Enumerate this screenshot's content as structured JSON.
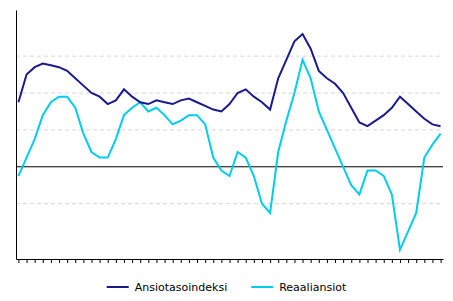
{
  "chart_data": {
    "type": "line",
    "categories": [
      null,
      null,
      null,
      null,
      null,
      null,
      null,
      null,
      null,
      null,
      null,
      null,
      null,
      null,
      null,
      null,
      null,
      null,
      null,
      null,
      null,
      null,
      null,
      null,
      null,
      null,
      null,
      null,
      null,
      null,
      null,
      null,
      null,
      null,
      null,
      null,
      null,
      null,
      null,
      null,
      null,
      null,
      null,
      null,
      null,
      null,
      null,
      null,
      null,
      null,
      null,
      null,
      null
    ],
    "series": [
      {
        "name": "Ansiotasoindeksi",
        "color": "#1a1a8c",
        "values": [
          3.5,
          5.0,
          5.4,
          5.6,
          5.5,
          5.4,
          5.2,
          4.8,
          4.4,
          4.0,
          3.8,
          3.4,
          3.6,
          4.2,
          3.8,
          3.5,
          3.4,
          3.6,
          3.5,
          3.4,
          3.6,
          3.7,
          3.5,
          3.3,
          3.1,
          3.0,
          3.4,
          4.0,
          4.2,
          3.8,
          3.5,
          3.1,
          4.8,
          5.8,
          6.8,
          7.2,
          6.4,
          5.2,
          4.8,
          4.5,
          4.0,
          3.2,
          2.4,
          2.2,
          2.5,
          2.8,
          3.2,
          3.8,
          3.4,
          3.0,
          2.6,
          2.3,
          2.2
        ]
      },
      {
        "name": "Reaaliansiot",
        "color": "#00ccee",
        "values": [
          -0.5,
          0.5,
          1.5,
          2.8,
          3.5,
          3.8,
          3.8,
          3.2,
          1.8,
          0.8,
          0.5,
          0.5,
          1.5,
          2.8,
          3.2,
          3.5,
          3.0,
          3.2,
          2.8,
          2.3,
          2.5,
          2.8,
          2.8,
          2.3,
          0.5,
          -0.2,
          -0.5,
          0.8,
          0.5,
          -0.5,
          -2.0,
          -2.5,
          0.8,
          2.5,
          4.0,
          5.8,
          4.8,
          3.0,
          2.0,
          1.0,
          0.0,
          -1.0,
          -1.5,
          -0.2,
          -0.2,
          -0.5,
          -1.5,
          -4.5,
          -3.5,
          -2.5,
          0.5,
          1.2,
          1.8
        ]
      }
    ],
    "ylim": [
      -5.0,
      8.5
    ],
    "yticks": [
      -2,
      0,
      2,
      4,
      6
    ],
    "grid": true,
    "tick_labels": false,
    "legend": "bottom"
  }
}
